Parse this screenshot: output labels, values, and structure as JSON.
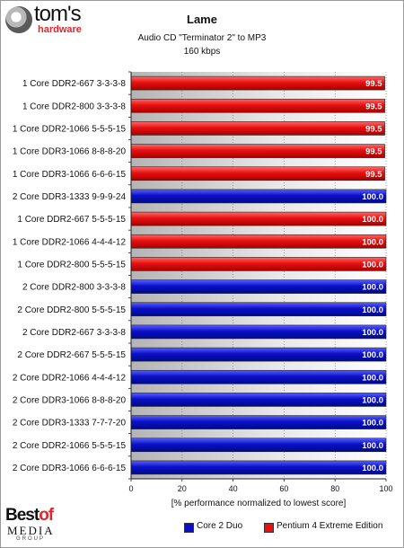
{
  "brand": {
    "toms": "tom's",
    "hardware": "hardware"
  },
  "footer_brand": {
    "best": "Best",
    "of": "of",
    "media": "MEDIA",
    "group": "GROUP"
  },
  "chart_data": {
    "type": "bar",
    "orientation": "horizontal",
    "title": "Lame",
    "subtitle": "Audio CD \"Terminator 2\" to MP3",
    "subtitle2": "160 kbps",
    "xlabel": "[% performance normalized to lowest score]",
    "xlim": [
      0,
      100
    ],
    "xticks": [
      0,
      20,
      40,
      60,
      80,
      100
    ],
    "grid": true,
    "legend": [
      {
        "name": "Core 2 Duo",
        "color": "#0a10c8"
      },
      {
        "name": "Pentium 4 Extreme Edition",
        "color": "#e81010"
      }
    ],
    "bars": [
      {
        "label": "1 Core DDR2-667 3-3-3-8",
        "value": 99.5,
        "value_label": "99.5",
        "series": "Pentium 4 Extreme Edition"
      },
      {
        "label": "1 Core DDR2-800 3-3-3-8",
        "value": 99.5,
        "value_label": "99.5",
        "series": "Pentium 4 Extreme Edition"
      },
      {
        "label": "1 Core DDR2-1066 5-5-5-15",
        "value": 99.5,
        "value_label": "99.5",
        "series": "Pentium 4 Extreme Edition"
      },
      {
        "label": "1 Core DDR3-1066 8-8-8-20",
        "value": 99.5,
        "value_label": "99.5",
        "series": "Pentium 4 Extreme Edition"
      },
      {
        "label": "1 Core DDR3-1066 6-6-6-15",
        "value": 99.5,
        "value_label": "99.5",
        "series": "Pentium 4 Extreme Edition"
      },
      {
        "label": "2 Core DDR3-1333 9-9-9-24",
        "value": 100.0,
        "value_label": "100.0",
        "series": "Core 2 Duo"
      },
      {
        "label": "1 Core DDR2-667 5-5-5-15",
        "value": 100.0,
        "value_label": "100.0",
        "series": "Pentium 4 Extreme Edition"
      },
      {
        "label": "1 Core DDR2-1066 4-4-4-12",
        "value": 100.0,
        "value_label": "100.0",
        "series": "Pentium 4 Extreme Edition"
      },
      {
        "label": "1 Core DDR2-800 5-5-5-15",
        "value": 100.0,
        "value_label": "100.0",
        "series": "Pentium 4 Extreme Edition"
      },
      {
        "label": "2 Core DDR2-800 3-3-3-8",
        "value": 100.0,
        "value_label": "100.0",
        "series": "Core 2 Duo"
      },
      {
        "label": "2 Core DDR2-800 5-5-5-15",
        "value": 100.0,
        "value_label": "100.0",
        "series": "Core 2 Duo"
      },
      {
        "label": "2 Core DDR2-667 3-3-3-8",
        "value": 100.0,
        "value_label": "100.0",
        "series": "Core 2 Duo"
      },
      {
        "label": "2 Core DDR2-667 5-5-5-15",
        "value": 100.0,
        "value_label": "100.0",
        "series": "Core 2 Duo"
      },
      {
        "label": "2 Core DDR2-1066 4-4-4-12",
        "value": 100.0,
        "value_label": "100.0",
        "series": "Core 2 Duo"
      },
      {
        "label": "2 Core DDR3-1066 8-8-8-20",
        "value": 100.0,
        "value_label": "100.0",
        "series": "Core 2 Duo"
      },
      {
        "label": "2 Core DDR3-1333 7-7-7-20",
        "value": 100.0,
        "value_label": "100.0",
        "series": "Core 2 Duo"
      },
      {
        "label": "2 Core DDR2-1066 5-5-5-15",
        "value": 100.0,
        "value_label": "100.0",
        "series": "Core 2 Duo"
      },
      {
        "label": "2 Core DDR3-1066 6-6-6-15",
        "value": 100.0,
        "value_label": "100.0",
        "series": "Core 2 Duo"
      }
    ]
  }
}
